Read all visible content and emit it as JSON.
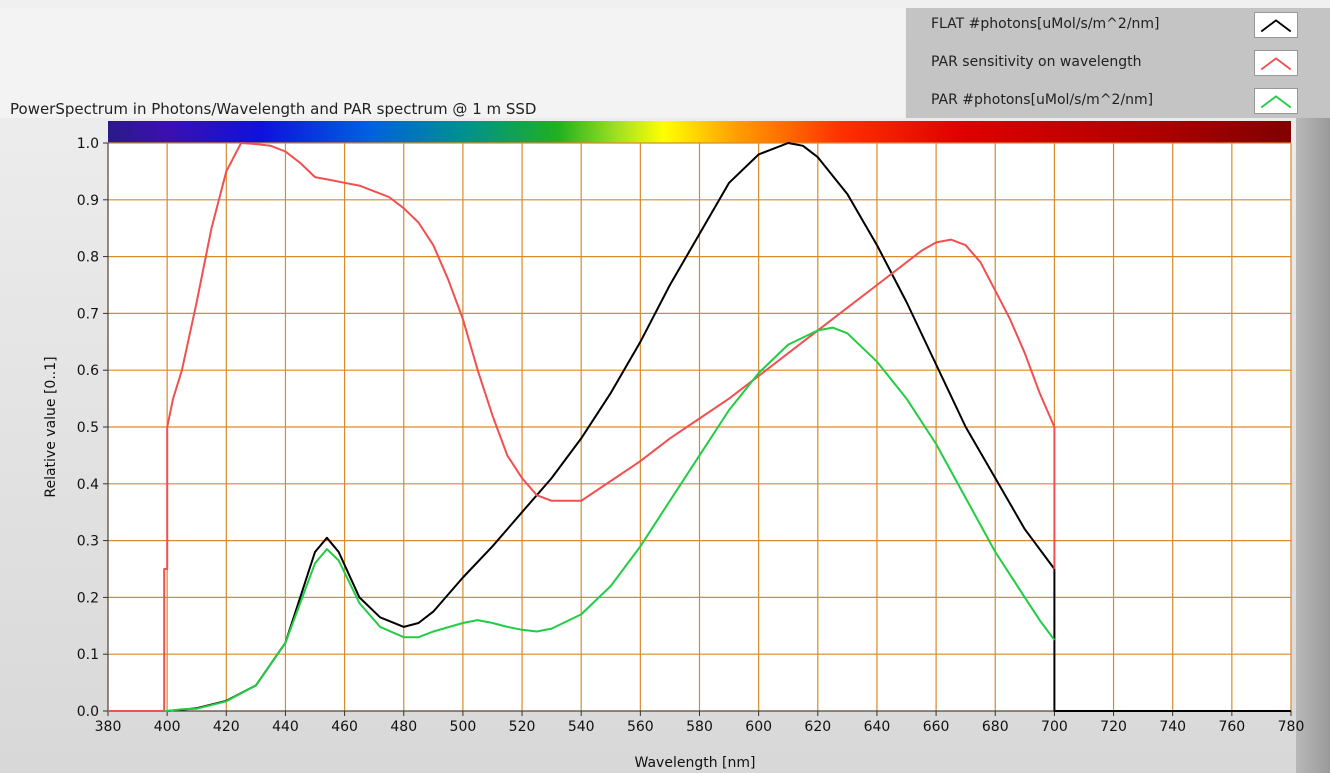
{
  "chart_data": {
    "type": "line",
    "title": "PowerSpectrum in Photons/Wavelength and PAR spectrum @ 1 m SSD",
    "xlabel": "Wavelength [nm]",
    "ylabel": "Relative value [0..1]",
    "xlim": [
      380,
      780
    ],
    "ylim": [
      0,
      1
    ],
    "xticks": [
      "380",
      "400",
      "420",
      "440",
      "460",
      "480",
      "500",
      "520",
      "540",
      "560",
      "580",
      "600",
      "620",
      "640",
      "660",
      "680",
      "700",
      "720",
      "740",
      "760",
      "780"
    ],
    "yticks": [
      "0.0",
      "0.1",
      "0.2",
      "0.3",
      "0.4",
      "0.5",
      "0.6",
      "0.7",
      "0.8",
      "0.9",
      "1.0"
    ],
    "grid": true,
    "grid_color": "#d98a2a",
    "plot_background": "#ffffff",
    "legend_position": "top-right",
    "spectrum_bar": true,
    "series": [
      {
        "name": "FLAT #photons[uMol/s/m^2/nm]",
        "color": "#000000",
        "x": [
          380,
          400,
          410,
          420,
          430,
          440,
          445,
          450,
          454,
          458,
          465,
          472,
          480,
          485,
          490,
          500,
          510,
          520,
          530,
          540,
          550,
          560,
          570,
          580,
          590,
          600,
          610,
          615,
          620,
          630,
          640,
          650,
          660,
          670,
          680,
          690,
          700,
          700,
          780
        ],
        "y": [
          0.0,
          0.0,
          0.005,
          0.018,
          0.045,
          0.12,
          0.2,
          0.28,
          0.305,
          0.28,
          0.2,
          0.165,
          0.148,
          0.155,
          0.175,
          0.235,
          0.29,
          0.35,
          0.41,
          0.48,
          0.56,
          0.65,
          0.75,
          0.84,
          0.93,
          0.98,
          1.0,
          0.995,
          0.975,
          0.91,
          0.82,
          0.72,
          0.61,
          0.5,
          0.41,
          0.32,
          0.25,
          0.0,
          0.0
        ]
      },
      {
        "name": "PAR sensitivity on wavelength",
        "color": "#f05050",
        "x": [
          380,
          399,
          399,
          400,
          400,
          402,
          405,
          410,
          415,
          420,
          425,
          430,
          435,
          440,
          445,
          450,
          455,
          460,
          465,
          470,
          475,
          480,
          485,
          490,
          495,
          500,
          505,
          510,
          515,
          520,
          525,
          530,
          535,
          540,
          550,
          560,
          570,
          580,
          590,
          600,
          610,
          620,
          630,
          640,
          650,
          655,
          660,
          665,
          670,
          675,
          680,
          685,
          690,
          695,
          700,
          700
        ],
        "y": [
          0.0,
          0.0,
          0.25,
          0.25,
          0.5,
          0.55,
          0.6,
          0.72,
          0.85,
          0.95,
          1.0,
          0.998,
          0.995,
          0.985,
          0.965,
          0.94,
          0.935,
          0.93,
          0.925,
          0.915,
          0.905,
          0.885,
          0.86,
          0.82,
          0.76,
          0.69,
          0.6,
          0.52,
          0.45,
          0.41,
          0.38,
          0.37,
          0.37,
          0.37,
          0.405,
          0.44,
          0.48,
          0.515,
          0.55,
          0.59,
          0.63,
          0.67,
          0.71,
          0.75,
          0.79,
          0.81,
          0.825,
          0.83,
          0.82,
          0.79,
          0.74,
          0.69,
          0.63,
          0.56,
          0.5,
          0.25
        ]
      },
      {
        "name": "PAR #photons[uMol/s/m^2/nm]",
        "color": "#22cc44",
        "x": [
          399,
          400,
          405,
          410,
          420,
          430,
          440,
          445,
          450,
          454,
          458,
          465,
          472,
          480,
          485,
          490,
          500,
          505,
          510,
          515,
          520,
          525,
          530,
          540,
          550,
          560,
          570,
          580,
          590,
          600,
          610,
          620,
          625,
          630,
          640,
          650,
          660,
          670,
          680,
          690,
          695,
          700
        ],
        "y": [
          0.0,
          0.0,
          0.003,
          0.004,
          0.017,
          0.045,
          0.12,
          0.19,
          0.26,
          0.285,
          0.265,
          0.19,
          0.148,
          0.13,
          0.13,
          0.14,
          0.155,
          0.16,
          0.155,
          0.148,
          0.143,
          0.14,
          0.145,
          0.17,
          0.22,
          0.29,
          0.37,
          0.45,
          0.53,
          0.595,
          0.645,
          0.67,
          0.675,
          0.665,
          0.615,
          0.55,
          0.47,
          0.375,
          0.28,
          0.2,
          0.16,
          0.125
        ]
      }
    ]
  }
}
